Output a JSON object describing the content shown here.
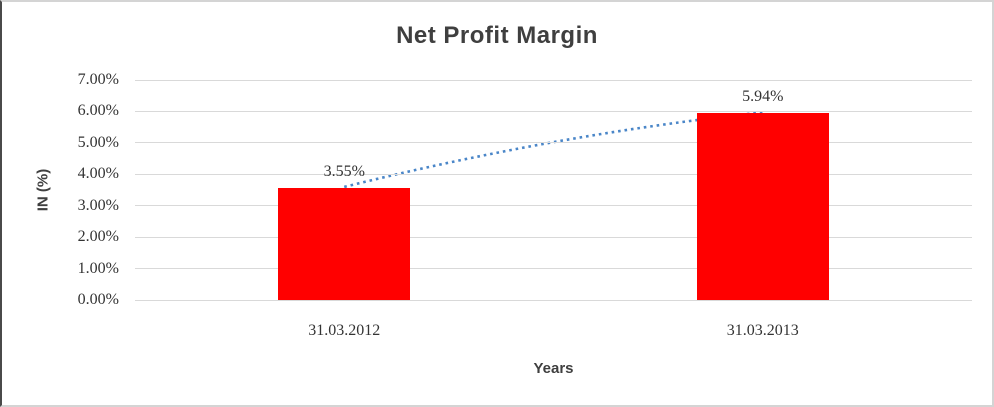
{
  "chart_data": {
    "type": "bar",
    "title": "Net Profit Margin",
    "xlabel": "Years",
    "ylabel": "IN (%)",
    "categories": [
      "31.03.2012",
      "31.03.2013"
    ],
    "values": [
      3.55,
      5.94
    ],
    "data_labels": [
      "3.55%",
      "5.94%"
    ],
    "y_ticks": [
      "0.00%",
      "1.00%",
      "2.00%",
      "3.00%",
      "4.00%",
      "5.00%",
      "6.00%",
      "7.00%"
    ],
    "ylim": [
      0,
      7
    ],
    "grid": true,
    "legend": "none",
    "trendline": {
      "style": "dotted",
      "from_category": "31.03.2012",
      "to_category": "31.03.2013"
    }
  },
  "colors": {
    "bar": "#ff0000",
    "trendline": "#4a86c8",
    "gridline": "#d9d9d9",
    "tick_text": "#333333",
    "title_text": "#3f3f3f"
  }
}
